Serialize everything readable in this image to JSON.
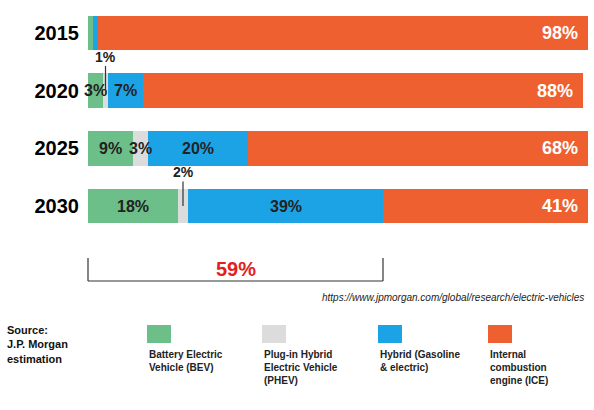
{
  "chart_data": {
    "type": "bar",
    "orientation": "horizontal",
    "stacked": true,
    "data_labels": true,
    "categories": [
      "2015",
      "2020",
      "2025",
      "2030"
    ],
    "series": [
      {
        "name": "Battery Electric Vehicle (BEV)",
        "color": "#6dbf8a",
        "values": [
          1,
          3,
          9,
          18
        ],
        "value_labels": [
          null,
          "3%",
          "9%",
          "18%"
        ]
      },
      {
        "name": "Plug-in Hybrid Electric Vehicle (PHEV)",
        "color": "#dcdcdc",
        "values": [
          0,
          1,
          3,
          2
        ],
        "value_labels": [
          null,
          "1%",
          "3%",
          "2%"
        ]
      },
      {
        "name": "Hybrid (Gasoline & electric)",
        "color": "#1ca3e6",
        "values": [
          1,
          7,
          20,
          39
        ],
        "value_labels": [
          null,
          "7%",
          "20%",
          "39%"
        ]
      },
      {
        "name": "Internal combustion engine (ICE)",
        "color": "#ee6030",
        "values": [
          98,
          88,
          68,
          41
        ],
        "value_labels": [
          "98%",
          "88%",
          "68%",
          "41%"
        ]
      }
    ],
    "xlim": [
      0,
      100
    ],
    "xticks": [
      0,
      100
    ],
    "tick_labels": "y",
    "grid": false,
    "legend": "bottom",
    "annotations": [
      {
        "text": "59%",
        "value": 59,
        "category": "2030",
        "color": "#e3211c"
      }
    ],
    "url": "https://www.jpmorgan.com/global/research/electric-vehicles",
    "source_note": "Source: J.P. Morgan estimation"
  }
}
